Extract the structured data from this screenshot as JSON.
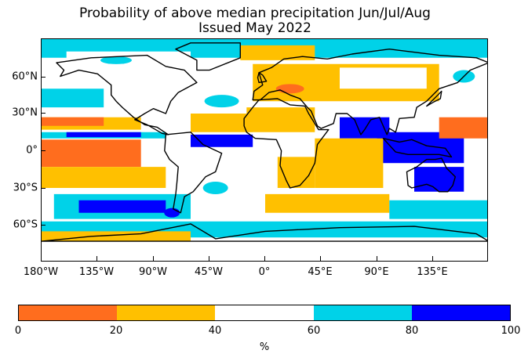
{
  "title": {
    "line1": "Probability of above median precipitation Jun/Jul/Aug",
    "line2": "Issued May 2022"
  },
  "map": {
    "projection": "equirectangular",
    "lon_ticks": [
      "180°W",
      "135°W",
      "90°W",
      "45°W",
      "0°",
      "45°E",
      "90°E",
      "135°E"
    ],
    "lat_ticks": [
      "60°N",
      "30°N",
      "0°",
      "30°S",
      "60°S"
    ],
    "coastline_color": "#000000",
    "ocean_color": "#ffffff"
  },
  "colorbar": {
    "bins": [
      {
        "range": "0-20",
        "color": "#ff6d1e"
      },
      {
        "range": "20-40",
        "color": "#ffc000"
      },
      {
        "range": "40-60",
        "color": "#ffffff"
      },
      {
        "range": "60-80",
        "color": "#00d2e8"
      },
      {
        "range": "80-100",
        "color": "#0000ff"
      }
    ],
    "tick_labels": [
      "0",
      "20",
      "40",
      "60",
      "80",
      "100"
    ],
    "unit": "%"
  }
}
